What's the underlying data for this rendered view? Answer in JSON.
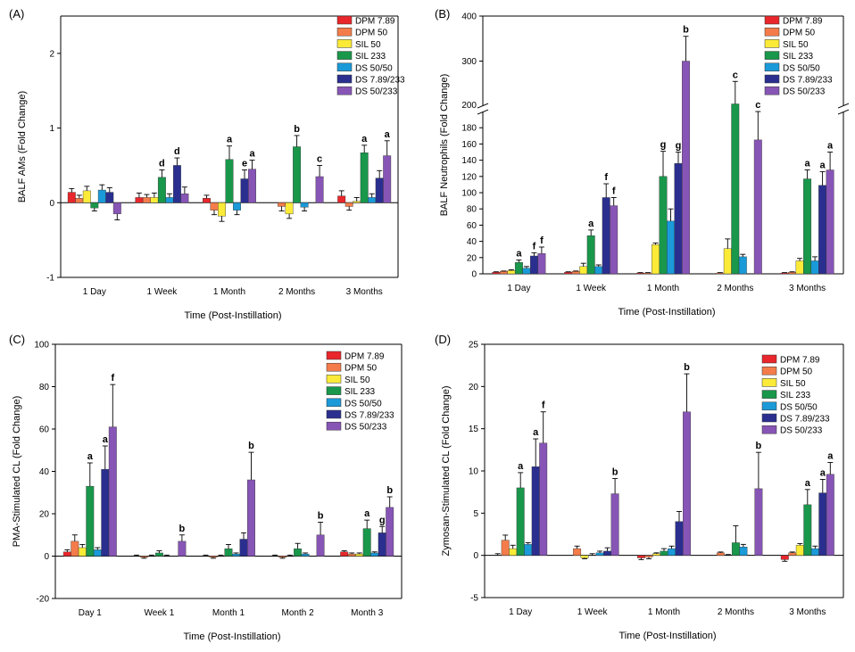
{
  "legend_labels": [
    "DPM 7.89",
    "DPM 50",
    "SIL 50",
    "SIL 233",
    "DS 50/50",
    "DS 7.89/233",
    "DS 50/233"
  ],
  "colors": [
    "#e8262b",
    "#f47c4a",
    "#fbeb38",
    "#19974b",
    "#1a9ad8",
    "#2a2f8f",
    "#8755b5"
  ],
  "chart_data": [
    {
      "type": "bar",
      "panel_label": "(A)",
      "ylabel": "BALF AMs (Fold Change)",
      "xlabel": "Time (Post-Instillation)",
      "categories": [
        "1 Day",
        "1 Week",
        "1 Month",
        "2 Months",
        "3 Months"
      ],
      "ylim": [
        -1,
        2.5
      ],
      "yticks": [
        -1,
        0,
        1,
        2
      ],
      "series": [
        {
          "name": "DPM 7.89",
          "values": [
            0.14,
            0.07,
            0.06,
            0,
            0.09
          ],
          "err": [
            0.05,
            0.06,
            0.04,
            0,
            0.07
          ]
        },
        {
          "name": "DPM 50",
          "values": [
            0.06,
            0.07,
            -0.1,
            -0.05,
            -0.05
          ],
          "err": [
            0.04,
            0.04,
            0.06,
            0.06,
            0.05
          ]
        },
        {
          "name": "SIL 50",
          "values": [
            0.16,
            0.07,
            -0.18,
            -0.15,
            0.02
          ],
          "err": [
            0.06,
            0.06,
            0.07,
            0.06,
            0.05
          ]
        },
        {
          "name": "SIL 233",
          "values": [
            -0.07,
            0.34,
            0.58,
            0.75,
            0.67
          ],
          "err": [
            0.04,
            0.1,
            0.18,
            0.15,
            0.1
          ]
        },
        {
          "name": "DS 50/50",
          "values": [
            0.17,
            0.07,
            -0.1,
            -0.06,
            0.07
          ],
          "err": [
            0.07,
            0.05,
            0.06,
            0.05,
            0.05
          ]
        },
        {
          "name": "DS 7.89/233",
          "values": [
            0.14,
            0.5,
            0.32,
            0,
            0.33
          ],
          "err": [
            0.06,
            0.1,
            0.12,
            0,
            0.1
          ]
        },
        {
          "name": "DS 50/233",
          "values": [
            -0.15,
            0.12,
            0.45,
            0.35,
            0.63
          ],
          "err": [
            0.08,
            0.09,
            0.12,
            0.15,
            0.2
          ]
        }
      ],
      "annotations": [
        {
          "cat": 1,
          "series": 3,
          "text": "d"
        },
        {
          "cat": 1,
          "series": 5,
          "text": "d"
        },
        {
          "cat": 2,
          "series": 3,
          "text": "a"
        },
        {
          "cat": 2,
          "series": 5,
          "text": "e"
        },
        {
          "cat": 2,
          "series": 6,
          "text": "a"
        },
        {
          "cat": 3,
          "series": 3,
          "text": "b"
        },
        {
          "cat": 3,
          "series": 6,
          "text": "c"
        },
        {
          "cat": 4,
          "series": 3,
          "text": "a"
        },
        {
          "cat": 4,
          "series": 6,
          "text": "a"
        }
      ]
    },
    {
      "type": "bar",
      "panel_label": "(B)",
      "ylabel": "BALF Neutrophils (Fold Change)",
      "xlabel": "Time (Post-Instillation)",
      "categories": [
        "1 Day",
        "1 Week",
        "1 Month",
        "2 Months",
        "3 Months"
      ],
      "broken_axis": {
        "lower": [
          0,
          200
        ],
        "upper": [
          200,
          400
        ]
      },
      "yticks_lower": [
        0,
        20,
        40,
        60,
        80,
        100,
        120,
        140,
        160,
        180
      ],
      "yticks_upper": [
        200,
        300,
        400
      ],
      "series": [
        {
          "name": "DPM 7.89",
          "values": [
            2,
            2,
            1,
            0,
            1
          ],
          "err": [
            0.5,
            0.5,
            0.5,
            0,
            0.5
          ]
        },
        {
          "name": "DPM 50",
          "values": [
            3,
            3,
            1,
            1,
            2
          ],
          "err": [
            0.5,
            0.5,
            0.5,
            0.5,
            0.5
          ]
        },
        {
          "name": "SIL 50",
          "values": [
            4,
            9,
            36,
            31,
            16
          ],
          "err": [
            1,
            4,
            2,
            12,
            3
          ]
        },
        {
          "name": "SIL 233",
          "values": [
            14,
            47,
            120,
            205,
            117
          ],
          "err": [
            3,
            7,
            31,
            50,
            11
          ]
        },
        {
          "name": "DS 50/50",
          "values": [
            7,
            9,
            65,
            21,
            16
          ],
          "err": [
            2,
            2,
            15,
            3,
            5
          ]
        },
        {
          "name": "DS 7.89/233",
          "values": [
            22,
            94,
            136,
            0,
            109
          ],
          "err": [
            4,
            17,
            14,
            0,
            17
          ]
        },
        {
          "name": "DS 50/233",
          "values": [
            25,
            84,
            300,
            165,
            128
          ],
          "err": [
            8,
            10,
            55,
            35,
            22
          ]
        }
      ],
      "annotations": [
        {
          "cat": 0,
          "series": 3,
          "text": "a"
        },
        {
          "cat": 0,
          "series": 5,
          "text": "f"
        },
        {
          "cat": 0,
          "series": 6,
          "text": "f"
        },
        {
          "cat": 1,
          "series": 3,
          "text": "a"
        },
        {
          "cat": 1,
          "series": 5,
          "text": "f"
        },
        {
          "cat": 1,
          "series": 6,
          "text": "f"
        },
        {
          "cat": 2,
          "series": 3,
          "text": "g"
        },
        {
          "cat": 2,
          "series": 5,
          "text": "g"
        },
        {
          "cat": 2,
          "series": 6,
          "text": "b"
        },
        {
          "cat": 3,
          "series": 3,
          "text": "c"
        },
        {
          "cat": 3,
          "series": 6,
          "text": "c"
        },
        {
          "cat": 4,
          "series": 3,
          "text": "a"
        },
        {
          "cat": 4,
          "series": 5,
          "text": "a"
        },
        {
          "cat": 4,
          "series": 6,
          "text": "a"
        }
      ]
    },
    {
      "type": "bar",
      "panel_label": "(C)",
      "ylabel": "PMA-Stimulated CL (Fold Change)",
      "xlabel": "Time (Post-Instillation)",
      "categories": [
        "Day 1",
        "Week 1",
        "Month 1",
        "Month 2",
        "Month 3"
      ],
      "ylim": [
        -20,
        100
      ],
      "yticks": [
        -20,
        0,
        20,
        40,
        60,
        80,
        100
      ],
      "series": [
        {
          "name": "DPM 7.89",
          "values": [
            2,
            0,
            0,
            0,
            2
          ],
          "err": [
            1,
            0.5,
            0.5,
            0.5,
            0.5
          ]
        },
        {
          "name": "DPM 50",
          "values": [
            7,
            -0.5,
            -0.5,
            -0.5,
            1
          ],
          "err": [
            3,
            0.5,
            0.5,
            0.5,
            0.5
          ]
        },
        {
          "name": "SIL 50",
          "values": [
            4,
            0,
            0,
            0,
            1
          ],
          "err": [
            1.5,
            0.5,
            0.5,
            0.5,
            0.5
          ]
        },
        {
          "name": "SIL 233",
          "values": [
            33,
            1.5,
            3.5,
            3.5,
            13
          ],
          "err": [
            11,
            1,
            2,
            2.5,
            4
          ]
        },
        {
          "name": "DS 50/50",
          "values": [
            3,
            0,
            1,
            1,
            1.5
          ],
          "err": [
            1,
            0.5,
            0.5,
            0.5,
            0.5
          ]
        },
        {
          "name": "DS 7.89/233",
          "values": [
            41,
            0,
            8,
            0,
            11
          ],
          "err": [
            11,
            0,
            3,
            0,
            3
          ]
        },
        {
          "name": "DS 50/233",
          "values": [
            61,
            7,
            36,
            10,
            23
          ],
          "err": [
            20,
            3,
            13,
            6,
            5
          ]
        }
      ],
      "annotations": [
        {
          "cat": 0,
          "series": 3,
          "text": "a"
        },
        {
          "cat": 0,
          "series": 5,
          "text": "a"
        },
        {
          "cat": 0,
          "series": 6,
          "text": "f"
        },
        {
          "cat": 1,
          "series": 6,
          "text": "b"
        },
        {
          "cat": 2,
          "series": 6,
          "text": "b"
        },
        {
          "cat": 3,
          "series": 6,
          "text": "b"
        },
        {
          "cat": 4,
          "series": 3,
          "text": "a"
        },
        {
          "cat": 4,
          "series": 5,
          "text": "g"
        },
        {
          "cat": 4,
          "series": 6,
          "text": "b"
        }
      ]
    },
    {
      "type": "bar",
      "panel_label": "(D)",
      "ylabel": "Zymosan-Stimulated CL (Fold Change)",
      "xlabel": "Time (Post-Instillation)",
      "categories": [
        "1 Day",
        "1 Week",
        "1 Month",
        "2 Months",
        "3 Months"
      ],
      "ylim": [
        -5,
        25
      ],
      "yticks": [
        -5,
        0,
        5,
        10,
        15,
        20,
        25
      ],
      "series": [
        {
          "name": "DPM 7.89",
          "values": [
            0,
            0,
            -0.3,
            0,
            -0.5
          ],
          "err": [
            0.2,
            0,
            0.2,
            0,
            0.2
          ]
        },
        {
          "name": "DPM 50",
          "values": [
            1.8,
            0.8,
            -0.2,
            0.3,
            0.3
          ],
          "err": [
            0.6,
            0.3,
            0.2,
            0.1,
            0.1
          ]
        },
        {
          "name": "SIL 50",
          "values": [
            0.8,
            -0.3,
            0.2,
            0,
            1.2
          ],
          "err": [
            0.4,
            0.1,
            0.1,
            0.1,
            0.2
          ]
        },
        {
          "name": "SIL 233",
          "values": [
            8,
            0,
            0.5,
            1.5,
            6
          ],
          "err": [
            1.8,
            0.2,
            0.3,
            2,
            1.8
          ]
        },
        {
          "name": "DS 50/50",
          "values": [
            1.3,
            0.3,
            0.8,
            1,
            0.8
          ],
          "err": [
            0.2,
            0.2,
            0.3,
            0.3,
            0.3
          ]
        },
        {
          "name": "DS 7.89/233",
          "values": [
            10.5,
            0.5,
            4,
            0,
            7.4
          ],
          "err": [
            3.3,
            0.4,
            1.2,
            0,
            1.6
          ]
        },
        {
          "name": "DS 50/233",
          "values": [
            13.3,
            7.3,
            17,
            7.9,
            9.6
          ],
          "err": [
            3.7,
            1.8,
            4.5,
            4.3,
            1.4
          ]
        }
      ],
      "annotations": [
        {
          "cat": 0,
          "series": 3,
          "text": "a"
        },
        {
          "cat": 0,
          "series": 5,
          "text": "a"
        },
        {
          "cat": 0,
          "series": 6,
          "text": "f"
        },
        {
          "cat": 1,
          "series": 6,
          "text": "b"
        },
        {
          "cat": 2,
          "series": 6,
          "text": "b"
        },
        {
          "cat": 3,
          "series": 6,
          "text": "b"
        },
        {
          "cat": 4,
          "series": 3,
          "text": "a"
        },
        {
          "cat": 4,
          "series": 5,
          "text": "a"
        },
        {
          "cat": 4,
          "series": 6,
          "text": "a"
        }
      ]
    }
  ]
}
